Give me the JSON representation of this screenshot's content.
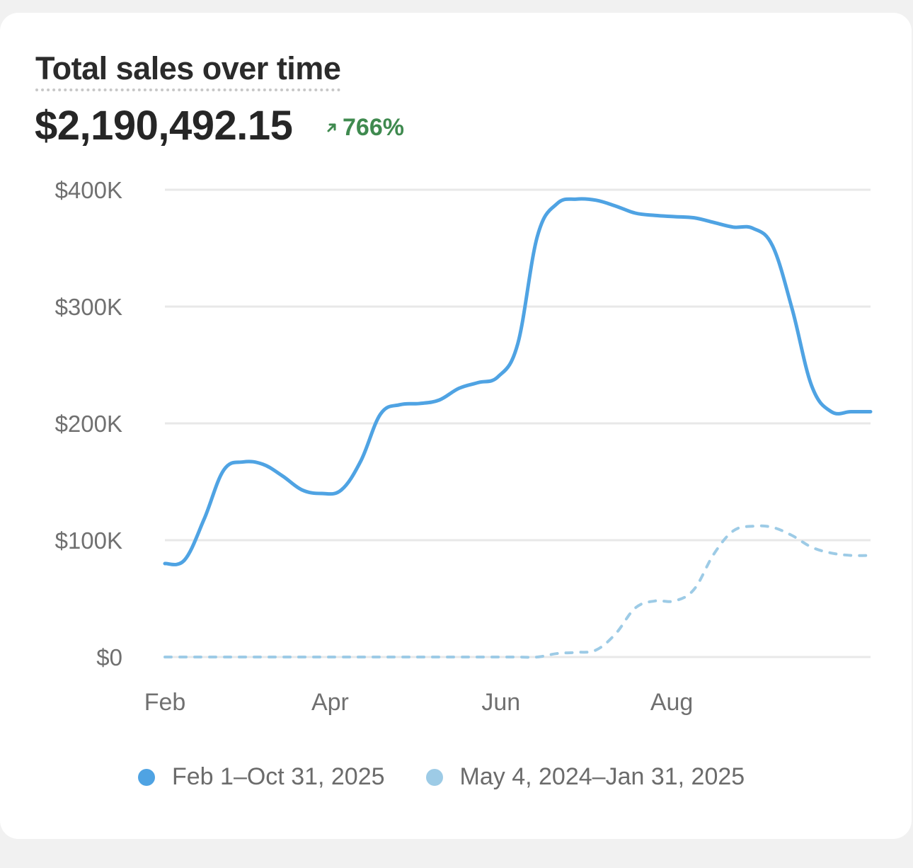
{
  "card": {
    "title": "Total sales over time",
    "total": "$2,190,492.15",
    "change": "766%",
    "change_icon": "arrow-up-right-icon",
    "change_color": "#3f8a4f"
  },
  "chart_data": {
    "type": "line",
    "title": "Total sales over time",
    "xlabel": "",
    "ylabel": "",
    "ylim": [
      0,
      400000
    ],
    "y_ticks": [
      {
        "value": 0,
        "label": "$0"
      },
      {
        "value": 100000,
        "label": "$100K"
      },
      {
        "value": 200000,
        "label": "$200K"
      },
      {
        "value": 300000,
        "label": "$300K"
      },
      {
        "value": 400000,
        "label": "$400K"
      }
    ],
    "x_ticks": [
      "Feb",
      "Apr",
      "Jun",
      "Aug"
    ],
    "grid": true,
    "legend_position": "bottom",
    "series": [
      {
        "name": "Feb 1–Oct 31, 2025",
        "color": "#4fa3e3",
        "style": "solid",
        "x": [
          "2025-02-01",
          "2025-02-08",
          "2025-02-15",
          "2025-02-22",
          "2025-03-01",
          "2025-03-08",
          "2025-03-15",
          "2025-03-22",
          "2025-03-29",
          "2025-04-05",
          "2025-04-12",
          "2025-04-19",
          "2025-04-26",
          "2025-05-03",
          "2025-05-10",
          "2025-05-17",
          "2025-05-24",
          "2025-05-31",
          "2025-06-07",
          "2025-06-14",
          "2025-06-21",
          "2025-06-28",
          "2025-07-05",
          "2025-07-12",
          "2025-07-19",
          "2025-07-26",
          "2025-08-02",
          "2025-08-09",
          "2025-08-16",
          "2025-08-23",
          "2025-08-30",
          "2025-09-06",
          "2025-09-13",
          "2025-09-20",
          "2025-09-27",
          "2025-10-04",
          "2025-10-11"
        ],
        "values": [
          80000,
          83000,
          118000,
          160000,
          167000,
          165000,
          155000,
          143000,
          140000,
          143000,
          168000,
          208000,
          216000,
          217000,
          220000,
          230000,
          235000,
          240000,
          268000,
          360000,
          388000,
          392000,
          391000,
          386000,
          380000,
          378000,
          377000,
          376000,
          372000,
          368000,
          367000,
          352000,
          298000,
          232000,
          210000,
          210000,
          210000
        ]
      },
      {
        "name": "May 4, 2024–Jan 31, 2025",
        "color": "#9dcbe6",
        "style": "dashed",
        "x": [
          "2025-02-01",
          "2025-02-08",
          "2025-02-15",
          "2025-02-22",
          "2025-03-01",
          "2025-03-08",
          "2025-03-15",
          "2025-03-22",
          "2025-03-29",
          "2025-04-05",
          "2025-04-12",
          "2025-04-19",
          "2025-04-26",
          "2025-05-03",
          "2025-05-10",
          "2025-05-17",
          "2025-05-24",
          "2025-05-31",
          "2025-06-07",
          "2025-06-14",
          "2025-06-21",
          "2025-06-28",
          "2025-07-05",
          "2025-07-12",
          "2025-07-19",
          "2025-07-26",
          "2025-08-02",
          "2025-08-09",
          "2025-08-16",
          "2025-08-23",
          "2025-08-30",
          "2025-09-06",
          "2025-09-13",
          "2025-09-20",
          "2025-09-27",
          "2025-10-04",
          "2025-10-11"
        ],
        "values": [
          0,
          0,
          0,
          0,
          0,
          0,
          0,
          0,
          0,
          0,
          0,
          0,
          0,
          0,
          0,
          0,
          0,
          0,
          0,
          0,
          3000,
          4000,
          6000,
          20000,
          42000,
          48000,
          48000,
          58000,
          88000,
          108000,
          112000,
          111000,
          104000,
          94000,
          89000,
          87000,
          87000
        ]
      }
    ]
  }
}
